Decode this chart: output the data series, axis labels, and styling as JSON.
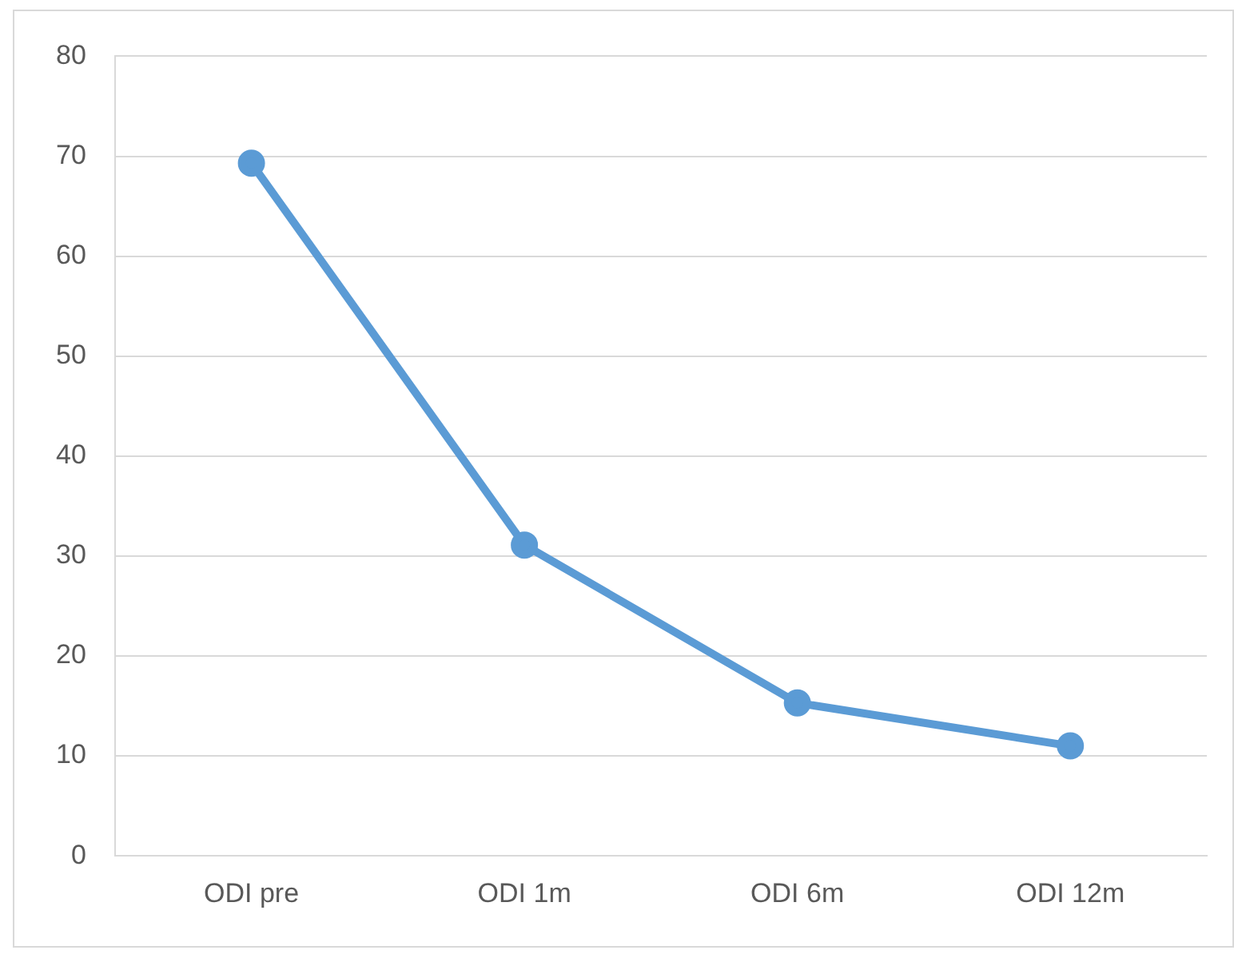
{
  "chart_data": {
    "type": "line",
    "categories": [
      "ODI pre",
      "ODI 1m",
      "ODI 6m",
      "ODI 12m"
    ],
    "series": [
      {
        "color": "#5b9bd5",
        "values": [
          69.3,
          31.1,
          15.3,
          11.0
        ]
      }
    ],
    "ylim": [
      0,
      80
    ],
    "yticks": [
      0,
      10,
      20,
      30,
      40,
      50,
      60,
      70,
      80
    ],
    "grid": "y",
    "legend": false,
    "marker": "circle",
    "line_style": "solid"
  }
}
